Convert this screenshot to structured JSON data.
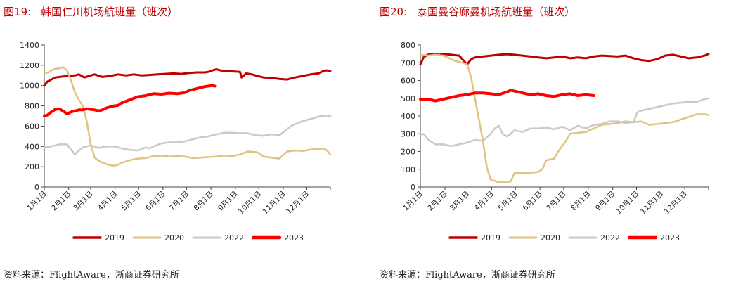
{
  "panels": [
    {
      "title_num": "图19:",
      "title_text": "韩国仁川机场航班量（班次）",
      "source": "资料来源：FlightAware，浙商证券研究所"
    },
    {
      "title_num": "图20:",
      "title_text": "泰国曼谷廊曼机场航班量（班次）",
      "source": "资料来源：FlightAware，浙商证券研究所"
    }
  ],
  "chart_data": [
    {
      "type": "line",
      "title": "韩国仁川机场航班量（班次）",
      "x_unit": "day_of_year",
      "xlim": [
        1,
        365
      ],
      "ylim": [
        0,
        1400
      ],
      "yticks": [
        0,
        200,
        400,
        600,
        800,
        1000,
        1200,
        1400
      ],
      "xtick_labels": [
        "1月1日",
        "2月1日",
        "3月1日",
        "4月1日",
        "5月1日",
        "6月1日",
        "7月1日",
        "8月1日",
        "9月1日",
        "10月1日",
        "11月1日",
        "12月1日"
      ],
      "xtick_days": [
        1,
        32,
        60,
        91,
        121,
        152,
        182,
        213,
        244,
        274,
        305,
        335
      ],
      "grid": false,
      "legend": "bottom",
      "series": [
        {
          "name": "2019",
          "color": "#c00000",
          "width": 3,
          "x": [
            1,
            5,
            15,
            30,
            40,
            45,
            52,
            60,
            65,
            75,
            85,
            95,
            105,
            115,
            125,
            135,
            145,
            155,
            165,
            175,
            185,
            195,
            205,
            210,
            215,
            220,
            225,
            230,
            240,
            250,
            252,
            258,
            265,
            272,
            280,
            290,
            300,
            310,
            315,
            320,
            330,
            340,
            350,
            355,
            360,
            365
          ],
          "y": [
            1000,
            1040,
            1080,
            1095,
            1100,
            1110,
            1080,
            1100,
            1110,
            1085,
            1095,
            1110,
            1100,
            1110,
            1100,
            1105,
            1110,
            1115,
            1120,
            1115,
            1125,
            1130,
            1130,
            1135,
            1150,
            1160,
            1150,
            1145,
            1140,
            1135,
            1080,
            1120,
            1110,
            1095,
            1080,
            1075,
            1065,
            1060,
            1070,
            1080,
            1095,
            1110,
            1120,
            1140,
            1150,
            1145
          ]
        },
        {
          "name": "2020",
          "color": "#e1c27e",
          "width": 2.5,
          "x": [
            1,
            5,
            10,
            15,
            20,
            25,
            30,
            35,
            40,
            45,
            50,
            55,
            60,
            65,
            70,
            75,
            80,
            85,
            90,
            95,
            100,
            110,
            120,
            130,
            140,
            150,
            160,
            170,
            180,
            190,
            200,
            210,
            220,
            230,
            240,
            250,
            260,
            270,
            275,
            280,
            290,
            300,
            310,
            320,
            330,
            340,
            350,
            355,
            360,
            365
          ],
          "y": [
            1130,
            1125,
            1150,
            1165,
            1170,
            1180,
            1150,
            1050,
            930,
            860,
            800,
            650,
            420,
            290,
            260,
            240,
            225,
            215,
            210,
            220,
            240,
            265,
            280,
            285,
            305,
            310,
            300,
            305,
            300,
            285,
            290,
            295,
            300,
            310,
            305,
            320,
            350,
            345,
            330,
            300,
            290,
            280,
            350,
            360,
            355,
            370,
            375,
            380,
            365,
            320
          ]
        },
        {
          "name": "2022",
          "color": "#c9c9c9",
          "width": 2.5,
          "x": [
            1,
            10,
            20,
            30,
            40,
            45,
            50,
            55,
            60,
            70,
            80,
            90,
            100,
            110,
            120,
            130,
            135,
            140,
            150,
            160,
            170,
            180,
            190,
            200,
            210,
            220,
            230,
            240,
            250,
            260,
            270,
            280,
            290,
            300,
            305,
            310,
            315,
            320,
            330,
            340,
            350,
            360,
            365
          ],
          "y": [
            390,
            400,
            420,
            420,
            320,
            360,
            390,
            400,
            410,
            385,
            400,
            400,
            380,
            365,
            360,
            390,
            380,
            400,
            430,
            440,
            440,
            450,
            470,
            490,
            500,
            520,
            535,
            535,
            530,
            530,
            510,
            505,
            520,
            510,
            540,
            570,
            600,
            620,
            650,
            670,
            695,
            705,
            700
          ]
        },
        {
          "name": "2023",
          "color": "#ff0000",
          "width": 4,
          "x": [
            1,
            5,
            10,
            15,
            20,
            25,
            30,
            35,
            40,
            45,
            50,
            55,
            60,
            65,
            70,
            75,
            80,
            85,
            90,
            95,
            100,
            110,
            120,
            130,
            140,
            150,
            160,
            170,
            180,
            185,
            190,
            195,
            200,
            205,
            210,
            215,
            218
          ],
          "y": [
            700,
            710,
            740,
            765,
            770,
            750,
            720,
            740,
            750,
            760,
            760,
            770,
            765,
            760,
            750,
            760,
            780,
            790,
            800,
            805,
            830,
            860,
            890,
            900,
            920,
            915,
            925,
            920,
            930,
            950,
            960,
            970,
            980,
            990,
            995,
            1000,
            995
          ]
        }
      ]
    },
    {
      "type": "line",
      "title": "泰国曼谷廊曼机场航班量（班次）",
      "x_unit": "day_of_year",
      "xlim": [
        1,
        365
      ],
      "ylim": [
        0,
        800
      ],
      "yticks": [
        0,
        100,
        200,
        300,
        400,
        500,
        600,
        700,
        800
      ],
      "xtick_labels": [
        "1月1日",
        "2月1日",
        "3月1日",
        "4月1日",
        "5月1日",
        "6月1日",
        "7月1日",
        "8月1日",
        "9月1日",
        "10月1日",
        "11月1日",
        "12月1日"
      ],
      "xtick_days": [
        1,
        32,
        60,
        91,
        121,
        152,
        182,
        213,
        244,
        274,
        305,
        335
      ],
      "grid": false,
      "legend": "bottom",
      "series": [
        {
          "name": "2019",
          "color": "#c00000",
          "width": 3,
          "x": [
            1,
            5,
            10,
            15,
            20,
            25,
            30,
            40,
            50,
            60,
            65,
            70,
            80,
            90,
            100,
            110,
            120,
            130,
            140,
            150,
            160,
            170,
            180,
            190,
            200,
            210,
            220,
            230,
            240,
            250,
            260,
            270,
            280,
            290,
            300,
            310,
            320,
            330,
            340,
            350,
            360,
            365
          ],
          "y": [
            690,
            730,
            745,
            750,
            748,
            745,
            750,
            745,
            740,
            690,
            720,
            730,
            735,
            740,
            745,
            748,
            745,
            740,
            735,
            730,
            725,
            730,
            735,
            725,
            730,
            725,
            735,
            740,
            738,
            735,
            740,
            725,
            715,
            710,
            720,
            740,
            745,
            735,
            725,
            730,
            740,
            750
          ]
        },
        {
          "name": "2020",
          "color": "#e1c27e",
          "width": 2.5,
          "x": [
            1,
            10,
            20,
            30,
            40,
            45,
            50,
            55,
            60,
            65,
            70,
            75,
            80,
            85,
            90,
            95,
            100,
            105,
            110,
            115,
            120,
            125,
            130,
            140,
            150,
            155,
            160,
            170,
            175,
            180,
            185,
            190,
            200,
            210,
            220,
            230,
            240,
            250,
            260,
            270,
            280,
            290,
            300,
            310,
            320,
            330,
            340,
            350,
            360,
            365
          ],
          "y": [
            745,
            740,
            745,
            740,
            720,
            710,
            705,
            700,
            690,
            620,
            500,
            380,
            260,
            110,
            40,
            35,
            25,
            30,
            25,
            30,
            80,
            80,
            78,
            80,
            85,
            100,
            150,
            160,
            200,
            230,
            260,
            300,
            305,
            310,
            330,
            350,
            355,
            360,
            370,
            365,
            370,
            350,
            355,
            360,
            365,
            380,
            395,
            410,
            410,
            405
          ]
        },
        {
          "name": "2022",
          "color": "#c9c9c9",
          "width": 2.5,
          "x": [
            1,
            5,
            10,
            20,
            30,
            40,
            50,
            60,
            70,
            80,
            90,
            95,
            100,
            105,
            110,
            115,
            120,
            130,
            140,
            150,
            160,
            170,
            180,
            190,
            200,
            210,
            220,
            230,
            240,
            250,
            260,
            270,
            275,
            280,
            290,
            300,
            310,
            320,
            330,
            340,
            350,
            360,
            365
          ],
          "y": [
            290,
            300,
            270,
            240,
            240,
            230,
            240,
            250,
            265,
            260,
            300,
            330,
            345,
            300,
            285,
            300,
            320,
            310,
            330,
            330,
            335,
            325,
            340,
            320,
            345,
            330,
            350,
            355,
            370,
            370,
            360,
            365,
            420,
            430,
            440,
            450,
            460,
            470,
            475,
            480,
            480,
            495,
            500
          ]
        },
        {
          "name": "2023",
          "color": "#ff0000",
          "width": 4,
          "x": [
            1,
            10,
            20,
            30,
            40,
            50,
            60,
            70,
            80,
            90,
            100,
            110,
            115,
            120,
            125,
            130,
            140,
            150,
            160,
            170,
            180,
            190,
            200,
            210,
            220
          ],
          "y": [
            495,
            495,
            485,
            495,
            505,
            515,
            520,
            530,
            530,
            525,
            520,
            535,
            545,
            540,
            535,
            530,
            520,
            525,
            515,
            510,
            520,
            525,
            515,
            520,
            515
          ]
        }
      ]
    }
  ]
}
